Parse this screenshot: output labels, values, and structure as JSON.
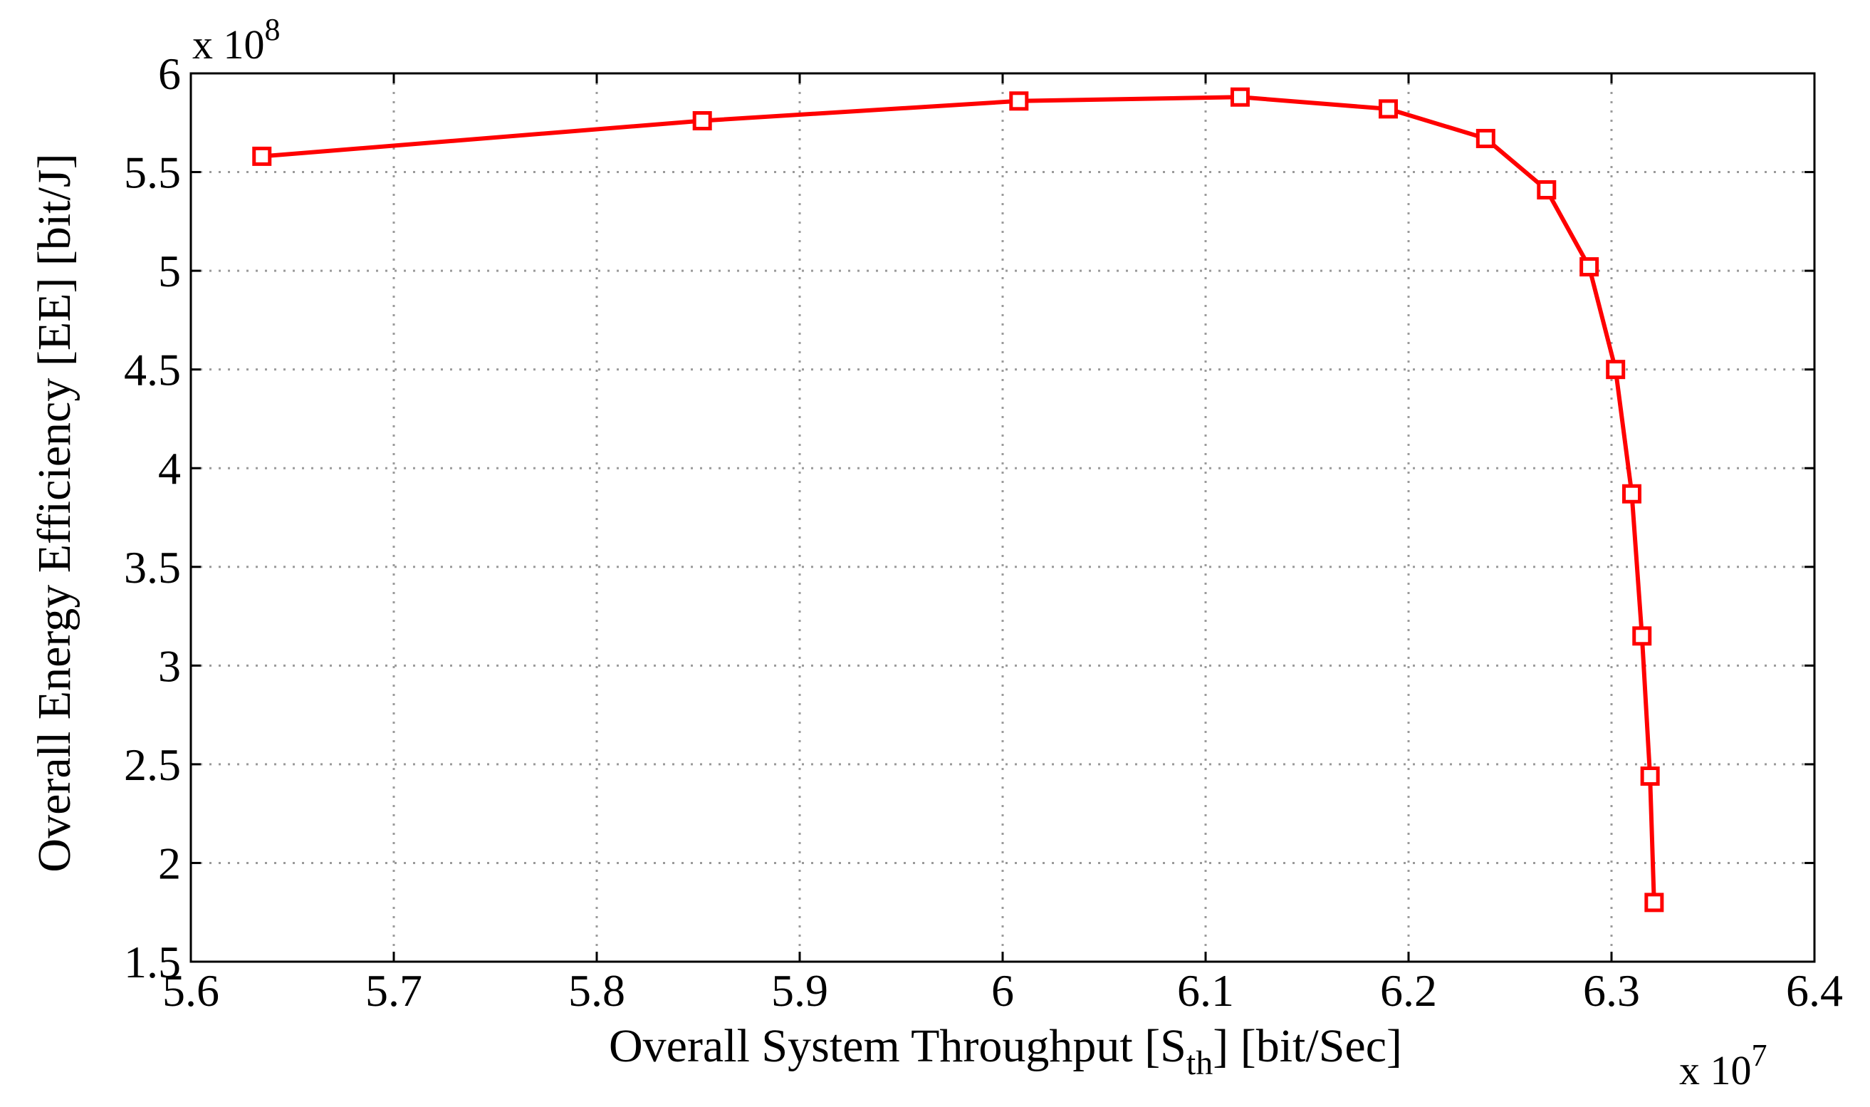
{
  "chart_data": {
    "type": "line",
    "xlabel": "Overall System Throughput [S",
    "xlabel_subscript": "th",
    "xlabel_suffix": "] [bit/Sec]",
    "ylabel": "Overall Energy Efficiency [EE] [bit/J]",
    "x_multiplier": {
      "base": "x 10",
      "exponent": "7"
    },
    "y_multiplier": {
      "base": "x 10",
      "exponent": "8"
    },
    "xlim": [
      5.6,
      6.4
    ],
    "ylim": [
      1.5,
      6
    ],
    "xticks": [
      "5.6",
      "5.7",
      "5.8",
      "5.9",
      "6",
      "6.1",
      "6.2",
      "6.3",
      "6.4"
    ],
    "yticks": [
      "1.5",
      "2",
      "2.5",
      "3",
      "3.5",
      "4",
      "4.5",
      "5",
      "5.5",
      "6"
    ],
    "grid": true,
    "marker": "square",
    "color": "#ff0000",
    "series": [
      {
        "x": [
          5.635,
          5.852,
          6.008,
          6.117,
          6.19,
          6.238,
          6.268,
          6.289,
          6.302,
          6.31,
          6.315,
          6.319,
          6.321
        ],
        "y": [
          5.58,
          5.76,
          5.86,
          5.88,
          5.82,
          5.67,
          5.41,
          5.02,
          4.5,
          3.87,
          3.15,
          2.44,
          1.8
        ]
      }
    ]
  }
}
